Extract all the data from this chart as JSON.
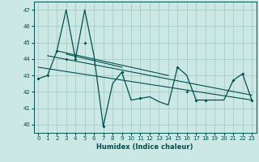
{
  "title": "",
  "xlabel": "Humidex (Indice chaleur)",
  "ylabel": "",
  "bg_color": "#cce8e4",
  "line_color": "#005050",
  "marker_color": "#005050",
  "grid_color": "#a8ccc8",
  "x": [
    0,
    1,
    2,
    3,
    4,
    5,
    6,
    7,
    8,
    9,
    10,
    11,
    12,
    13,
    14,
    15,
    16,
    17,
    18,
    19,
    20,
    21,
    22,
    23
  ],
  "y_main": [
    42.8,
    43.0,
    44.5,
    47.0,
    44.0,
    47.0,
    44.2,
    39.9,
    42.5,
    43.2,
    41.5,
    41.6,
    41.7,
    41.4,
    41.2,
    43.5,
    43.0,
    41.5,
    41.5,
    41.5,
    41.5,
    42.7,
    43.1,
    41.5
  ],
  "y_markers": [
    42.8,
    43.0,
    44.5,
    44.0,
    44.0,
    45.0,
    null,
    39.9,
    null,
    43.2,
    null,
    41.6,
    null,
    null,
    null,
    43.5,
    42.0,
    41.5,
    41.5,
    null,
    null,
    42.7,
    43.1,
    41.5
  ],
  "trend1_x": [
    0,
    23
  ],
  "trend1_y": [
    43.5,
    41.5
  ],
  "trend2_x": [
    1,
    23
  ],
  "trend2_y": [
    44.2,
    41.8
  ],
  "trend3_x": [
    2,
    14
  ],
  "trend3_y": [
    44.5,
    43.0
  ],
  "trend4_x": [
    3,
    9
  ],
  "trend4_y": [
    44.3,
    43.5
  ],
  "ylim": [
    39.5,
    47.5
  ],
  "xlim": [
    -0.5,
    23.5
  ],
  "yticks": [
    40,
    41,
    42,
    43,
    44,
    45,
    46,
    47
  ],
  "xticks": [
    0,
    1,
    2,
    3,
    4,
    5,
    6,
    7,
    8,
    9,
    10,
    11,
    12,
    13,
    14,
    15,
    16,
    17,
    18,
    19,
    20,
    21,
    22,
    23
  ]
}
